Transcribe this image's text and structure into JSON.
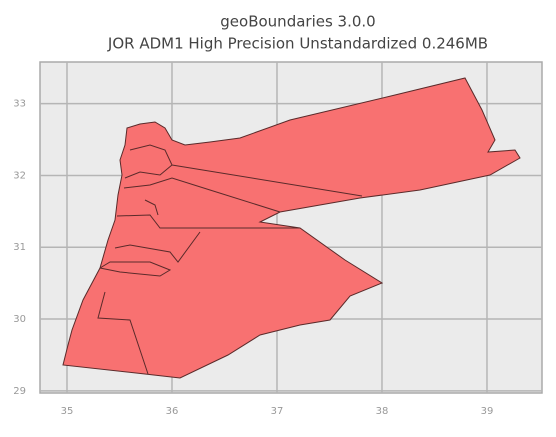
{
  "chart_data": {
    "type": "map",
    "title": "geoBoundaries 3.0.0",
    "subtitle": "JOR ADM1 High Precision Unstandardized 0.246MB",
    "xlim": [
      34.743,
      39.524
    ],
    "xticks": [
      35,
      36,
      37,
      38,
      39
    ],
    "ylim": [
      28.97,
      33.58
    ],
    "yticks": [
      29,
      30,
      31,
      32,
      33
    ],
    "grid": true,
    "color": "#f87171"
  }
}
